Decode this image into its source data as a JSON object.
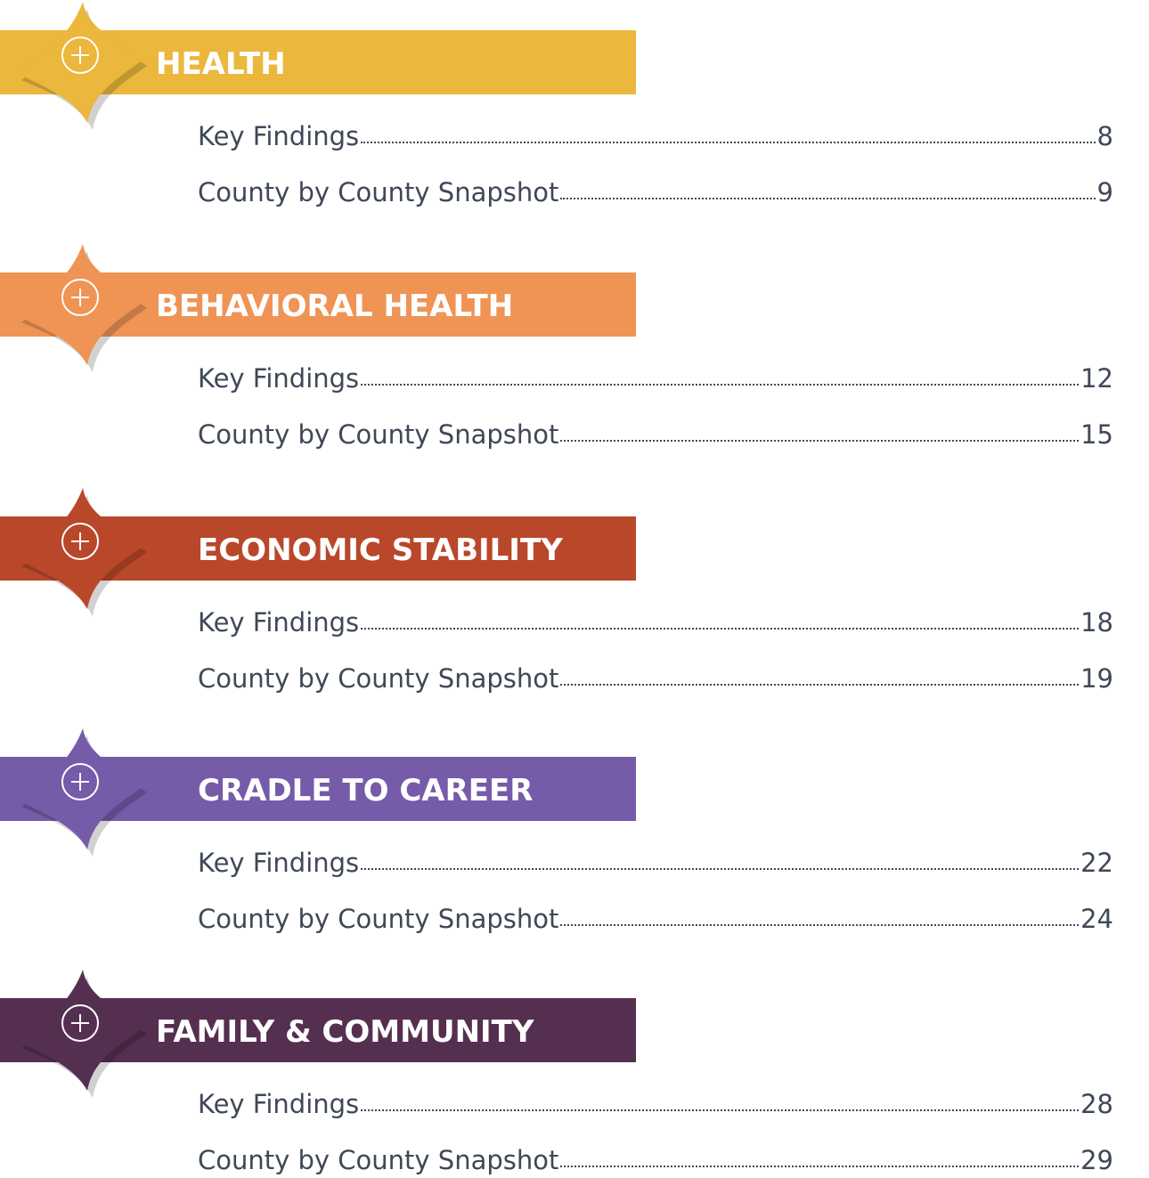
{
  "sections": [
    {
      "title": "HEALTH",
      "entries": [
        {
          "label": "Key Findings",
          "page": 8
        },
        {
          "label": "County by County Snapshot",
          "page": 9
        }
      ]
    },
    {
      "title": "BEHAVIORAL HEALTH",
      "entries": [
        {
          "label": "Key Findings",
          "page": 12
        },
        {
          "label": "County by County Snapshot",
          "page": 15
        }
      ]
    },
    {
      "title": "ECONOMIC STABILITY",
      "entries": [
        {
          "label": "Key Findings",
          "page": 18
        },
        {
          "label": "County by County Snapshot",
          "page": 19
        }
      ]
    },
    {
      "title": "CRADLE TO CAREER",
      "entries": [
        {
          "label": "Key Findings",
          "page": 22
        },
        {
          "label": "County by County Snapshot",
          "page": 24
        }
      ]
    },
    {
      "title": "FAMILY & COMMUNITY",
      "entries": [
        {
          "label": "Key Findings",
          "page": 28
        },
        {
          "label": "County by County Snapshot",
          "page": 29
        }
      ]
    }
  ]
}
